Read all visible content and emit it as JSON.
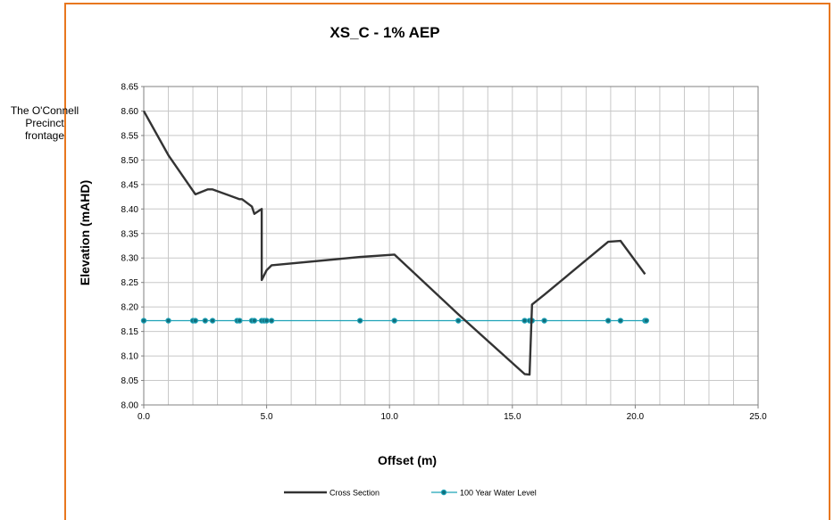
{
  "annotation": {
    "lines": [
      "The O'Connell",
      "Precinct",
      "frontage"
    ]
  },
  "chart_data": {
    "type": "line",
    "title": "XS_C - 1% AEP",
    "xlabel": "Offset (m)",
    "ylabel": "Elevation (mAHD)",
    "xlim": [
      0,
      25
    ],
    "ylim": [
      8.0,
      8.65
    ],
    "x_ticks": [
      "0.0",
      "5.0",
      "10.0",
      "15.0",
      "20.0",
      "25.0"
    ],
    "y_ticks": [
      "8.00",
      "8.05",
      "8.10",
      "8.15",
      "8.20",
      "8.25",
      "8.30",
      "8.35",
      "8.40",
      "8.45",
      "8.50",
      "8.55",
      "8.60",
      "8.65"
    ],
    "grid": true,
    "legend_position": "bottom",
    "series": [
      {
        "name": "Cross Section",
        "color": "#333333",
        "marker": "none",
        "points": [
          [
            0.0,
            8.6
          ],
          [
            1.0,
            8.51
          ],
          [
            2.1,
            8.43
          ],
          [
            2.6,
            8.44
          ],
          [
            2.8,
            8.44
          ],
          [
            3.9,
            8.42
          ],
          [
            4.0,
            8.42
          ],
          [
            4.4,
            8.405
          ],
          [
            4.5,
            8.39
          ],
          [
            4.8,
            8.4
          ],
          [
            4.8,
            8.255
          ],
          [
            5.0,
            8.275
          ],
          [
            5.2,
            8.285
          ],
          [
            8.8,
            8.302
          ],
          [
            10.2,
            8.307
          ],
          [
            12.8,
            8.185
          ],
          [
            15.5,
            8.063
          ],
          [
            15.7,
            8.062
          ],
          [
            15.8,
            8.205
          ],
          [
            16.3,
            8.225
          ],
          [
            18.9,
            8.333
          ],
          [
            19.4,
            8.335
          ],
          [
            20.4,
            8.267
          ]
        ]
      },
      {
        "name": "100 Year Water Level",
        "color": "#1fa3b8",
        "marker": "circle",
        "points": [
          [
            0.0,
            8.172
          ],
          [
            1.0,
            8.172
          ],
          [
            2.0,
            8.172
          ],
          [
            2.1,
            8.172
          ],
          [
            2.5,
            8.172
          ],
          [
            2.8,
            8.172
          ],
          [
            3.8,
            8.172
          ],
          [
            3.9,
            8.172
          ],
          [
            4.4,
            8.172
          ],
          [
            4.5,
            8.172
          ],
          [
            4.8,
            8.172
          ],
          [
            4.9,
            8.172
          ],
          [
            5.0,
            8.172
          ],
          [
            5.2,
            8.172
          ],
          [
            8.8,
            8.172
          ],
          [
            10.2,
            8.172
          ],
          [
            12.8,
            8.172
          ],
          [
            15.5,
            8.172
          ],
          [
            15.7,
            8.172
          ],
          [
            15.8,
            8.172
          ],
          [
            16.3,
            8.172
          ],
          [
            18.9,
            8.172
          ],
          [
            19.4,
            8.172
          ],
          [
            20.4,
            8.172
          ],
          [
            20.45,
            8.172
          ]
        ]
      }
    ]
  }
}
